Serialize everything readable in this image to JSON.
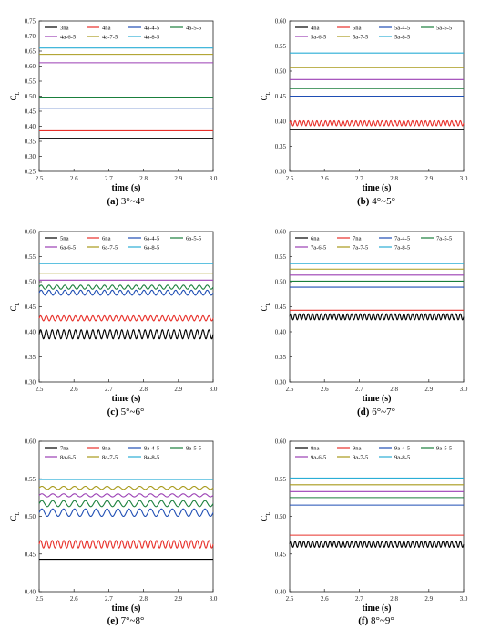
{
  "figure": {
    "panels": [
      {
        "id": "a",
        "caption_label": "(a)",
        "caption_text": "3°~4°"
      },
      {
        "id": "b",
        "caption_label": "(b)",
        "caption_text": "4°~5°"
      },
      {
        "id": "c",
        "caption_label": "(c)",
        "caption_text": "5°~6°"
      },
      {
        "id": "d",
        "caption_label": "(d)",
        "caption_text": "6°~7°"
      },
      {
        "id": "e",
        "caption_label": "(e)",
        "caption_text": "7°~8°"
      },
      {
        "id": "f",
        "caption_label": "(f)",
        "caption_text": "8°~9°"
      }
    ]
  },
  "chart_data": [
    {
      "type": "line",
      "xlabel": "time (s)",
      "ylabel": "CL",
      "xlim": [
        2.5,
        3.0
      ],
      "xticks": [
        "2.5",
        "2.6",
        "2.7",
        "2.8",
        "2.9",
        "3.0"
      ],
      "ylim": [
        0.25,
        0.75
      ],
      "yticks": [
        "0.25",
        "0.30",
        "0.35",
        "0.40",
        "0.45",
        "0.50",
        "0.55",
        "0.60",
        "0.65",
        "0.70",
        "0.75"
      ],
      "legend_position": "top",
      "series": [
        {
          "name": "3na",
          "color": "#000000",
          "mean": 0.36,
          "amplitude": 0,
          "cycles": 0
        },
        {
          "name": "4na",
          "color": "#e8302a",
          "mean": 0.385,
          "amplitude": 0,
          "cycles": 0
        },
        {
          "name": "4a-4-5",
          "color": "#1f4eb4",
          "mean": 0.46,
          "amplitude": 0,
          "cycles": 0
        },
        {
          "name": "4a-5-5",
          "color": "#1a7f3c",
          "mean": 0.497,
          "amplitude": 0,
          "cycles": 0
        },
        {
          "name": "4a-6-5",
          "color": "#9b3fb4",
          "mean": 0.611,
          "amplitude": 0,
          "cycles": 0
        },
        {
          "name": "4a-7-5",
          "color": "#a89a1a",
          "mean": 0.639,
          "amplitude": 0,
          "cycles": 0
        },
        {
          "name": "4a-8-5",
          "color": "#2aaed6",
          "mean": 0.66,
          "amplitude": 0,
          "cycles": 0
        }
      ]
    },
    {
      "type": "line",
      "xlabel": "time (s)",
      "ylabel": "CL",
      "xlim": [
        2.5,
        3.0
      ],
      "xticks": [
        "2.5",
        "2.6",
        "2.7",
        "2.8",
        "2.9",
        "3.0"
      ],
      "ylim": [
        0.3,
        0.6
      ],
      "yticks": [
        "0.30",
        "0.35",
        "0.40",
        "0.45",
        "0.50",
        "0.55",
        "0.60"
      ],
      "legend_position": "top",
      "series": [
        {
          "name": "4na",
          "color": "#000000",
          "mean": 0.383,
          "amplitude": 0,
          "cycles": 0
        },
        {
          "name": "5na",
          "color": "#e8302a",
          "mean": 0.396,
          "amplitude": 0.005,
          "cycles": 40
        },
        {
          "name": "5a-4-5",
          "color": "#1f4eb4",
          "mean": 0.45,
          "amplitude": 0,
          "cycles": 0
        },
        {
          "name": "5a-5-5",
          "color": "#1a7f3c",
          "mean": 0.465,
          "amplitude": 0,
          "cycles": 0
        },
        {
          "name": "5a-6-5",
          "color": "#9b3fb4",
          "mean": 0.483,
          "amplitude": 0,
          "cycles": 0
        },
        {
          "name": "5a-7-5",
          "color": "#a89a1a",
          "mean": 0.507,
          "amplitude": 0,
          "cycles": 0
        },
        {
          "name": "5a-8-5",
          "color": "#2aaed6",
          "mean": 0.536,
          "amplitude": 0,
          "cycles": 0
        }
      ]
    },
    {
      "type": "line",
      "xlabel": "time (s)",
      "ylabel": "CL",
      "xlim": [
        2.5,
        3.0
      ],
      "xticks": [
        "2.5",
        "2.6",
        "2.7",
        "2.8",
        "2.9",
        "3.0"
      ],
      "ylim": [
        0.3,
        0.6
      ],
      "yticks": [
        "0.30",
        "0.35",
        "0.40",
        "0.45",
        "0.50",
        "0.55",
        "0.60"
      ],
      "legend_position": "top",
      "series": [
        {
          "name": "5na",
          "color": "#000000",
          "mean": 0.395,
          "amplitude": 0.009,
          "cycles": 30
        },
        {
          "name": "6na",
          "color": "#e8302a",
          "mean": 0.427,
          "amplitude": 0.005,
          "cycles": 30
        },
        {
          "name": "6a-4-5",
          "color": "#1f4eb4",
          "mean": 0.478,
          "amplitude": 0.005,
          "cycles": 22
        },
        {
          "name": "6a-5-5",
          "color": "#1a7f3c",
          "mean": 0.489,
          "amplitude": 0.004,
          "cycles": 22
        },
        {
          "name": "6a-6-5",
          "color": "#9b3fb4",
          "mean": 0.503,
          "amplitude": 0,
          "cycles": 0
        },
        {
          "name": "6a-7-5",
          "color": "#a89a1a",
          "mean": 0.517,
          "amplitude": 0,
          "cycles": 0
        },
        {
          "name": "6a-8-5",
          "color": "#2aaed6",
          "mean": 0.536,
          "amplitude": 0,
          "cycles": 0
        }
      ]
    },
    {
      "type": "line",
      "xlabel": "time (s)",
      "ylabel": "CL",
      "xlim": [
        2.5,
        3.0
      ],
      "xticks": [
        "2.5",
        "2.6",
        "2.7",
        "2.8",
        "2.9",
        "3.0"
      ],
      "ylim": [
        0.3,
        0.6
      ],
      "yticks": [
        "0.30",
        "0.35",
        "0.40",
        "0.45",
        "0.50",
        "0.55",
        "0.60"
      ],
      "legend_position": "top",
      "series": [
        {
          "name": "6na",
          "color": "#000000",
          "mean": 0.43,
          "amplitude": 0.006,
          "cycles": 40
        },
        {
          "name": "7na",
          "color": "#e8302a",
          "mean": 0.443,
          "amplitude": 0,
          "cycles": 0
        },
        {
          "name": "7a-4-5",
          "color": "#1f4eb4",
          "mean": 0.489,
          "amplitude": 0,
          "cycles": 0
        },
        {
          "name": "7a-5-5",
          "color": "#1a7f3c",
          "mean": 0.501,
          "amplitude": 0,
          "cycles": 0
        },
        {
          "name": "7a-6-5",
          "color": "#9b3fb4",
          "mean": 0.513,
          "amplitude": 0,
          "cycles": 0
        },
        {
          "name": "7a-7-5",
          "color": "#a89a1a",
          "mean": 0.525,
          "amplitude": 0,
          "cycles": 0
        },
        {
          "name": "7a-8-5",
          "color": "#2aaed6",
          "mean": 0.536,
          "amplitude": 0,
          "cycles": 0
        }
      ]
    },
    {
      "type": "line",
      "xlabel": "time (s)",
      "ylabel": "CL",
      "xlim": [
        2.5,
        3.0
      ],
      "xticks": [
        "2.5",
        "2.6",
        "2.7",
        "2.8",
        "2.9",
        "3.0"
      ],
      "ylim": [
        0.4,
        0.6
      ],
      "yticks": [
        "0.40",
        "0.45",
        "0.50",
        "0.55",
        "0.60"
      ],
      "legend_position": "top",
      "series": [
        {
          "name": "7na",
          "color": "#000000",
          "mean": 0.443,
          "amplitude": 0,
          "cycles": 0
        },
        {
          "name": "8na",
          "color": "#e8302a",
          "mean": 0.463,
          "amplitude": 0.005,
          "cycles": 30
        },
        {
          "name": "8a-4-5",
          "color": "#1f4eb4",
          "mean": 0.505,
          "amplitude": 0.005,
          "cycles": 16
        },
        {
          "name": "8a-5-5",
          "color": "#1a7f3c",
          "mean": 0.517,
          "amplitude": 0.004,
          "cycles": 16
        },
        {
          "name": "8a-6-5",
          "color": "#9b3fb4",
          "mean": 0.528,
          "amplitude": 0.002,
          "cycles": 16
        },
        {
          "name": "8a-7-5",
          "color": "#a89a1a",
          "mean": 0.538,
          "amplitude": 0.002,
          "cycles": 16
        },
        {
          "name": "8a-8-5",
          "color": "#2aaed6",
          "mean": 0.549,
          "amplitude": 0,
          "cycles": 0
        }
      ]
    },
    {
      "type": "line",
      "xlabel": "time (s)",
      "ylabel": "CL",
      "xlim": [
        2.5,
        3.0
      ],
      "xticks": [
        "2.5",
        "2.6",
        "2.7",
        "2.8",
        "2.9",
        "3.0"
      ],
      "ylim": [
        0.4,
        0.6
      ],
      "yticks": [
        "0.40",
        "0.45",
        "0.50",
        "0.55",
        "0.60"
      ],
      "legend_position": "top",
      "series": [
        {
          "name": "8na",
          "color": "#000000",
          "mean": 0.463,
          "amplitude": 0.004,
          "cycles": 40
        },
        {
          "name": "9na",
          "color": "#e8302a",
          "mean": 0.475,
          "amplitude": 0,
          "cycles": 0
        },
        {
          "name": "9a-4-5",
          "color": "#1f4eb4",
          "mean": 0.515,
          "amplitude": 0,
          "cycles": 0
        },
        {
          "name": "9a-5-5",
          "color": "#1a7f3c",
          "mean": 0.525,
          "amplitude": 0,
          "cycles": 0
        },
        {
          "name": "9a-6-5",
          "color": "#9b3fb4",
          "mean": 0.533,
          "amplitude": 0,
          "cycles": 0
        },
        {
          "name": "9a-7-5",
          "color": "#a89a1a",
          "mean": 0.542,
          "amplitude": 0,
          "cycles": 0
        },
        {
          "name": "9a-8-5",
          "color": "#2aaed6",
          "mean": 0.551,
          "amplitude": 0,
          "cycles": 0
        }
      ]
    }
  ]
}
